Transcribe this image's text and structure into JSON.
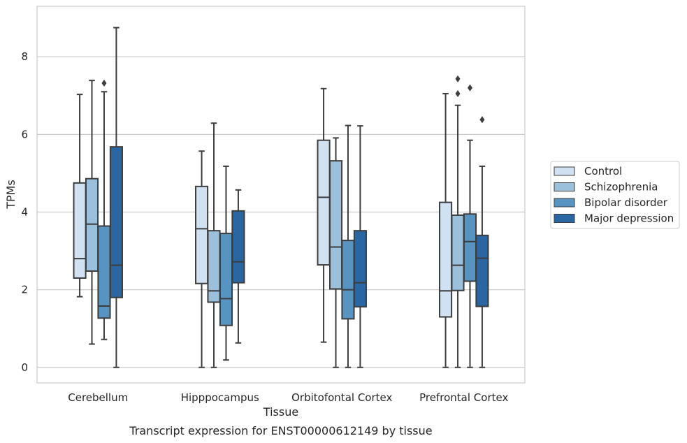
{
  "caption": "Transcript expression for ENST00000612149 by tissue",
  "chart_data": {
    "type": "box",
    "title": "",
    "xlabel": "Tissue",
    "ylabel": "TPMs",
    "ylim": [
      -0.4,
      9.3
    ],
    "yticks": [
      0,
      2,
      4,
      6,
      8
    ],
    "grid": "horizontal",
    "legend_position": "right",
    "categories": [
      "Cerebellum",
      "Hipppocampus",
      "Orbitofontal Cortex",
      "Prefrontal Cortex"
    ],
    "series": [
      {
        "name": "Control",
        "color": "#d0e1f2",
        "boxes": [
          {
            "whislo": 1.82,
            "q1": 2.3,
            "median": 2.8,
            "q3": 4.75,
            "whishi": 7.03,
            "fliers": []
          },
          {
            "whislo": 0.0,
            "q1": 2.16,
            "median": 3.57,
            "q3": 4.66,
            "whishi": 5.57,
            "fliers": []
          },
          {
            "whislo": 0.65,
            "q1": 2.64,
            "median": 4.38,
            "q3": 5.85,
            "whishi": 7.18,
            "fliers": []
          },
          {
            "whislo": 0.0,
            "q1": 1.3,
            "median": 1.97,
            "q3": 4.25,
            "whishi": 7.05,
            "fliers": []
          }
        ]
      },
      {
        "name": "Schizophrenia",
        "color": "#9ac0dc",
        "boxes": [
          {
            "whislo": 0.6,
            "q1": 2.48,
            "median": 3.69,
            "q3": 4.86,
            "whishi": 7.39,
            "fliers": []
          },
          {
            "whislo": 0.0,
            "q1": 1.68,
            "median": 1.97,
            "q3": 3.52,
            "whishi": 6.29,
            "fliers": []
          },
          {
            "whislo": 0.0,
            "q1": 2.02,
            "median": 3.1,
            "q3": 5.32,
            "whishi": 5.91,
            "fliers": []
          },
          {
            "whislo": 0.0,
            "q1": 1.98,
            "median": 2.63,
            "q3": 3.92,
            "whishi": 6.75,
            "fliers": [
              7.05,
              7.43
            ]
          }
        ]
      },
      {
        "name": "Bipolar disorder",
        "color": "#5894c1",
        "boxes": [
          {
            "whislo": 0.72,
            "q1": 1.27,
            "median": 1.58,
            "q3": 3.64,
            "whishi": 7.1,
            "fliers": [
              7.32
            ]
          },
          {
            "whislo": 0.19,
            "q1": 1.08,
            "median": 1.77,
            "q3": 3.45,
            "whishi": 5.18,
            "fliers": []
          },
          {
            "whislo": 0.0,
            "q1": 1.25,
            "median": 2.0,
            "q3": 3.27,
            "whishi": 6.23,
            "fliers": []
          },
          {
            "whislo": 0.0,
            "q1": 2.22,
            "median": 3.24,
            "q3": 3.95,
            "whishi": 5.85,
            "fliers": [
              7.2
            ]
          }
        ]
      },
      {
        "name": "Major depression",
        "color": "#2a66a2",
        "boxes": [
          {
            "whislo": 0.0,
            "q1": 1.8,
            "median": 2.63,
            "q3": 5.68,
            "whishi": 8.75,
            "fliers": []
          },
          {
            "whislo": 0.63,
            "q1": 2.18,
            "median": 2.72,
            "q3": 4.03,
            "whishi": 4.57,
            "fliers": []
          },
          {
            "whislo": 0.0,
            "q1": 1.56,
            "median": 2.18,
            "q3": 3.52,
            "whishi": 6.22,
            "fliers": []
          },
          {
            "whislo": 0.0,
            "q1": 1.57,
            "median": 2.81,
            "q3": 3.4,
            "whishi": 5.18,
            "fliers": [
              6.38
            ]
          }
        ]
      }
    ]
  }
}
